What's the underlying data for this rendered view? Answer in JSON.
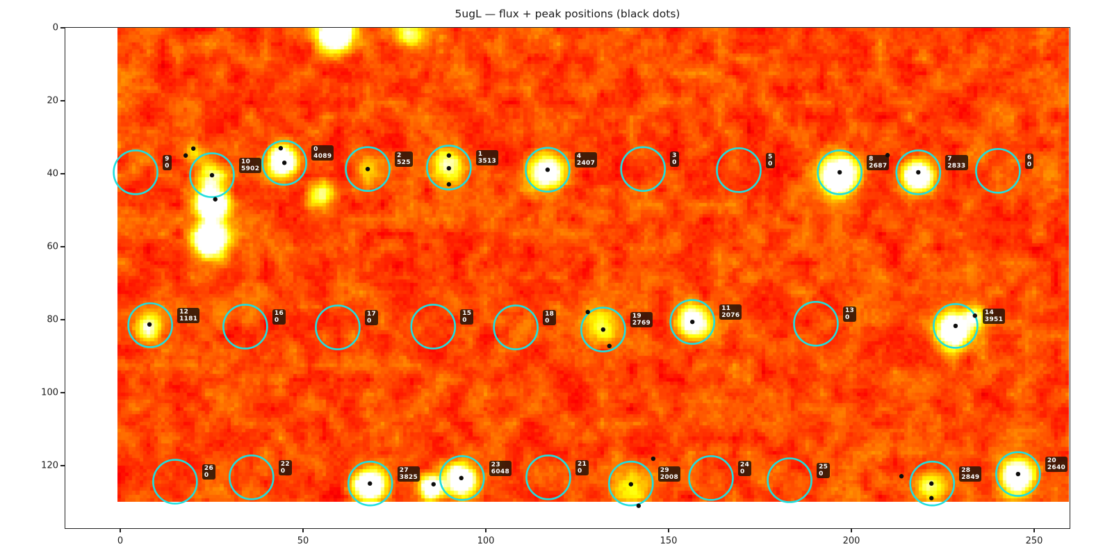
{
  "chart_data": {
    "type": "heatmap",
    "title": "5ugL — flux + peak positions (black dots)",
    "xlabel": "",
    "ylabel": "",
    "x_ticks": [
      0,
      50,
      100,
      150,
      200,
      250
    ],
    "y_ticks": [
      0,
      20,
      40,
      60,
      80,
      100,
      120
    ],
    "xlim": [
      -15,
      260
    ],
    "ylim": [
      137.5,
      0
    ],
    "image_cols": 260,
    "image_rows": 130,
    "colormap": "hot",
    "style": {
      "circle_color": "#1fdede",
      "dot_color": "#0d0d0d",
      "label_bg": "#2a1608",
      "label_text": "#ffffff",
      "spine_color": "#1f1f1f"
    },
    "sources": [
      {
        "id": 0,
        "flux": 4089,
        "x": 44.9,
        "y": 37.0
      },
      {
        "id": 1,
        "flux": 3513,
        "x": 89.9,
        "y": 38.3
      },
      {
        "id": 2,
        "flux": 525,
        "x": 67.7,
        "y": 38.7
      },
      {
        "id": 3,
        "flux": 0,
        "x": 143.0,
        "y": 38.7
      },
      {
        "id": 4,
        "flux": 2407,
        "x": 116.9,
        "y": 38.9
      },
      {
        "id": 5,
        "flux": 0,
        "x": 169.2,
        "y": 39.0
      },
      {
        "id": 6,
        "flux": 0,
        "x": 240.1,
        "y": 39.2
      },
      {
        "id": 7,
        "flux": 2833,
        "x": 218.3,
        "y": 39.6
      },
      {
        "id": 8,
        "flux": 2687,
        "x": 196.8,
        "y": 39.6
      },
      {
        "id": 9,
        "flux": 0,
        "x": 4.2,
        "y": 39.6
      },
      {
        "id": 10,
        "flux": 5902,
        "x": 25.1,
        "y": 40.4
      },
      {
        "id": 11,
        "flux": 2076,
        "x": 156.5,
        "y": 80.6
      },
      {
        "id": 12,
        "flux": 1181,
        "x": 8.2,
        "y": 81.5
      },
      {
        "id": 13,
        "flux": 0,
        "x": 190.3,
        "y": 81.1
      },
      {
        "id": 14,
        "flux": 3951,
        "x": 228.5,
        "y": 81.7
      },
      {
        "id": 15,
        "flux": 0,
        "x": 85.6,
        "y": 81.9
      },
      {
        "id": 16,
        "flux": 0,
        "x": 34.2,
        "y": 81.9
      },
      {
        "id": 17,
        "flux": 0,
        "x": 59.5,
        "y": 82.1
      },
      {
        "id": 18,
        "flux": 0,
        "x": 108.2,
        "y": 82.1
      },
      {
        "id": 19,
        "flux": 2769,
        "x": 132.1,
        "y": 82.7
      },
      {
        "id": 20,
        "flux": 2640,
        "x": 245.6,
        "y": 122.3
      },
      {
        "id": 21,
        "flux": 0,
        "x": 117.1,
        "y": 123.2
      },
      {
        "id": 22,
        "flux": 0,
        "x": 35.9,
        "y": 123.2
      },
      {
        "id": 23,
        "flux": 6048,
        "x": 93.5,
        "y": 123.4
      },
      {
        "id": 24,
        "flux": 0,
        "x": 161.6,
        "y": 123.4
      },
      {
        "id": 25,
        "flux": 0,
        "x": 183.1,
        "y": 124.0
      },
      {
        "id": 26,
        "flux": 0,
        "x": 15.0,
        "y": 124.4
      },
      {
        "id": 27,
        "flux": 3825,
        "x": 68.4,
        "y": 124.9
      },
      {
        "id": 28,
        "flux": 2849,
        "x": 222.1,
        "y": 124.9
      },
      {
        "id": 29,
        "flux": 2008,
        "x": 139.7,
        "y": 124.9
      }
    ],
    "peak_dots": [
      [
        20.0,
        33.1
      ],
      [
        17.9,
        35.0
      ],
      [
        25.1,
        40.4
      ],
      [
        26.0,
        47.0
      ],
      [
        43.9,
        33.0
      ],
      [
        44.9,
        37.0
      ],
      [
        67.7,
        38.7
      ],
      [
        89.9,
        35.0
      ],
      [
        89.9,
        38.5
      ],
      [
        89.9,
        42.9
      ],
      [
        116.9,
        38.9
      ],
      [
        196.8,
        39.6
      ],
      [
        209.9,
        34.9
      ],
      [
        218.3,
        39.6
      ],
      [
        8.0,
        81.3
      ],
      [
        127.9,
        77.9
      ],
      [
        132.1,
        82.7
      ],
      [
        133.8,
        87.2
      ],
      [
        156.5,
        80.6
      ],
      [
        228.5,
        81.7
      ],
      [
        233.8,
        78.9
      ],
      [
        68.3,
        124.9
      ],
      [
        85.7,
        125.1
      ],
      [
        93.3,
        123.4
      ],
      [
        139.7,
        125.1
      ],
      [
        145.8,
        118.1
      ],
      [
        141.8,
        131.0
      ],
      [
        213.7,
        122.9
      ],
      [
        221.9,
        124.9
      ],
      [
        221.9,
        128.9
      ],
      [
        245.6,
        122.3
      ]
    ],
    "hotspots": [
      [
        59,
        0.5,
        3.5,
        1.0
      ],
      [
        79.5,
        1.5,
        2.5,
        0.45
      ],
      [
        20,
        33.5,
        2.0,
        0.3
      ],
      [
        25,
        40,
        3.0,
        0.4
      ],
      [
        25.5,
        48,
        3.0,
        0.95
      ],
      [
        25,
        57.5,
        3.2,
        1.0
      ],
      [
        44.5,
        36,
        2.8,
        0.9
      ],
      [
        55,
        45,
        2.5,
        0.4
      ],
      [
        67.7,
        38.7,
        2.8,
        0.18
      ],
      [
        89.9,
        37,
        3.5,
        0.42
      ],
      [
        116.9,
        39,
        3.5,
        0.75
      ],
      [
        196.8,
        40,
        3.5,
        0.95
      ],
      [
        218.3,
        40,
        3.0,
        0.8
      ],
      [
        8,
        81.5,
        2.8,
        0.5
      ],
      [
        132,
        80.5,
        3.5,
        0.35
      ],
      [
        156.5,
        80.5,
        3.0,
        0.7
      ],
      [
        228,
        82.5,
        3.5,
        0.85
      ],
      [
        234,
        79,
        2.0,
        0.4
      ],
      [
        68.4,
        125,
        2.8,
        0.95
      ],
      [
        85.5,
        125.5,
        2.2,
        0.85
      ],
      [
        93.5,
        123.5,
        2.8,
        0.95
      ],
      [
        140,
        125,
        3.5,
        0.3
      ],
      [
        222,
        126,
        3.0,
        0.4
      ],
      [
        245.6,
        122.5,
        3.0,
        1.0
      ]
    ]
  }
}
